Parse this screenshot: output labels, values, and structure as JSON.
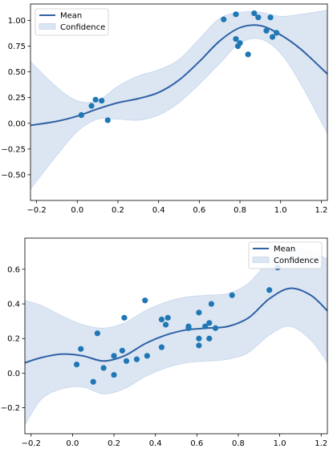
{
  "chart_data": [
    {
      "type": "line",
      "xlim": [
        -0.23,
        1.23
      ],
      "ylim": [
        -0.75,
        1.16
      ],
      "x_ticks": [
        -0.2,
        0.0,
        0.2,
        0.4,
        0.6,
        0.8,
        1.0,
        1.2
      ],
      "x_tick_labels": [
        "−0.2",
        "0.0",
        "0.2",
        "0.4",
        "0.6",
        "0.8",
        "1.0",
        "1.2"
      ],
      "y_ticks": [
        -0.5,
        -0.25,
        0.0,
        0.25,
        0.5,
        0.75,
        1.0
      ],
      "y_tick_labels": [
        "−0.50",
        "−0.25",
        "0.00",
        "0.25",
        "0.50",
        "0.75",
        "1.00"
      ],
      "legend": {
        "position": "top-left",
        "entries": [
          "Mean",
          "Confidence"
        ]
      },
      "series": [
        {
          "name": "Mean",
          "x": [
            -0.23,
            -0.1,
            0.0,
            0.1,
            0.2,
            0.3,
            0.4,
            0.5,
            0.6,
            0.7,
            0.8,
            0.9,
            1.0,
            1.1,
            1.23
          ],
          "values": [
            -0.02,
            0.02,
            0.07,
            0.14,
            0.2,
            0.24,
            0.3,
            0.42,
            0.6,
            0.8,
            0.93,
            0.95,
            0.86,
            0.72,
            0.48
          ]
        },
        {
          "name": "Confidence",
          "x": [
            -0.23,
            -0.1,
            0.0,
            0.1,
            0.2,
            0.3,
            0.4,
            0.5,
            0.6,
            0.7,
            0.8,
            0.9,
            1.0,
            1.1,
            1.23
          ],
          "upper": [
            0.6,
            0.35,
            0.22,
            0.22,
            0.36,
            0.46,
            0.52,
            0.62,
            0.82,
            1.02,
            1.08,
            1.08,
            1.04,
            1.06,
            1.1
          ],
          "lower": [
            -0.64,
            -0.31,
            -0.08,
            0.04,
            0.04,
            0.03,
            0.08,
            0.2,
            0.38,
            0.58,
            0.78,
            0.82,
            0.68,
            0.38,
            -0.1
          ]
        }
      ],
      "points": [
        {
          "x": 0.02,
          "y": 0.08
        },
        {
          "x": 0.07,
          "y": 0.17
        },
        {
          "x": 0.09,
          "y": 0.23
        },
        {
          "x": 0.12,
          "y": 0.22
        },
        {
          "x": 0.15,
          "y": 0.03
        },
        {
          "x": 0.72,
          "y": 1.01
        },
        {
          "x": 0.78,
          "y": 1.06
        },
        {
          "x": 0.78,
          "y": 0.82
        },
        {
          "x": 0.79,
          "y": 0.75
        },
        {
          "x": 0.8,
          "y": 0.78
        },
        {
          "x": 0.84,
          "y": 0.67
        },
        {
          "x": 0.87,
          "y": 1.07
        },
        {
          "x": 0.89,
          "y": 1.03
        },
        {
          "x": 0.93,
          "y": 0.9
        },
        {
          "x": 0.95,
          "y": 1.03
        },
        {
          "x": 0.96,
          "y": 0.84
        },
        {
          "x": 0.98,
          "y": 0.88
        }
      ],
      "colors": {
        "line": "#2f61a4",
        "band": "#dce6f3",
        "band_edge": "#c6d6ec",
        "points": "#1f77b4"
      }
    },
    {
      "type": "line",
      "xlim": [
        -0.23,
        1.23
      ],
      "ylim": [
        -0.35,
        0.78
      ],
      "x_ticks": [
        -0.2,
        0.0,
        0.2,
        0.4,
        0.6,
        0.8,
        1.0,
        1.2
      ],
      "x_tick_labels": [
        "−0.2",
        "0.0",
        "0.2",
        "0.4",
        "0.6",
        "0.8",
        "1.0",
        "1.2"
      ],
      "y_ticks": [
        -0.2,
        0.0,
        0.2,
        0.4,
        0.6
      ],
      "y_tick_labels": [
        "−0.2",
        "0.0",
        "0.2",
        "0.4",
        "0.6"
      ],
      "legend": {
        "position": "top-right",
        "entries": [
          "Mean",
          "Confidence"
        ]
      },
      "series": [
        {
          "name": "Mean",
          "x": [
            -0.23,
            -0.15,
            -0.05,
            0.05,
            0.15,
            0.25,
            0.35,
            0.45,
            0.55,
            0.65,
            0.75,
            0.85,
            0.95,
            1.05,
            1.15,
            1.23
          ],
          "values": [
            0.06,
            0.09,
            0.11,
            0.1,
            0.07,
            0.1,
            0.17,
            0.22,
            0.25,
            0.26,
            0.27,
            0.32,
            0.43,
            0.49,
            0.45,
            0.36
          ]
        },
        {
          "name": "Confidence",
          "x": [
            -0.23,
            -0.15,
            -0.05,
            0.05,
            0.15,
            0.25,
            0.35,
            0.45,
            0.55,
            0.65,
            0.75,
            0.85,
            0.95,
            1.05,
            1.15,
            1.23
          ],
          "upper": [
            0.42,
            0.39,
            0.33,
            0.28,
            0.26,
            0.29,
            0.36,
            0.41,
            0.44,
            0.45,
            0.46,
            0.52,
            0.65,
            0.72,
            0.7,
            0.66
          ],
          "lower": [
            -0.3,
            -0.15,
            -0.09,
            -0.08,
            -0.12,
            -0.09,
            -0.02,
            0.03,
            0.06,
            0.07,
            0.08,
            0.12,
            0.22,
            0.27,
            0.19,
            0.06
          ]
        }
      ],
      "points": [
        {
          "x": 0.02,
          "y": 0.05
        },
        {
          "x": 0.04,
          "y": 0.14
        },
        {
          "x": 0.1,
          "y": -0.05
        },
        {
          "x": 0.12,
          "y": 0.23
        },
        {
          "x": 0.15,
          "y": 0.03
        },
        {
          "x": 0.2,
          "y": 0.1
        },
        {
          "x": 0.2,
          "y": -0.01
        },
        {
          "x": 0.24,
          "y": 0.13
        },
        {
          "x": 0.25,
          "y": 0.32
        },
        {
          "x": 0.26,
          "y": 0.07
        },
        {
          "x": 0.31,
          "y": 0.08
        },
        {
          "x": 0.35,
          "y": 0.42
        },
        {
          "x": 0.36,
          "y": 0.1
        },
        {
          "x": 0.43,
          "y": 0.31
        },
        {
          "x": 0.43,
          "y": 0.15
        },
        {
          "x": 0.45,
          "y": 0.28
        },
        {
          "x": 0.46,
          "y": 0.32
        },
        {
          "x": 0.56,
          "y": 0.27
        },
        {
          "x": 0.56,
          "y": 0.26
        },
        {
          "x": 0.61,
          "y": 0.35
        },
        {
          "x": 0.61,
          "y": 0.2
        },
        {
          "x": 0.61,
          "y": 0.16
        },
        {
          "x": 0.64,
          "y": 0.27
        },
        {
          "x": 0.66,
          "y": 0.29
        },
        {
          "x": 0.66,
          "y": 0.2
        },
        {
          "x": 0.67,
          "y": 0.4
        },
        {
          "x": 0.69,
          "y": 0.26
        },
        {
          "x": 0.77,
          "y": 0.45
        },
        {
          "x": 0.95,
          "y": 0.48
        },
        {
          "x": 0.99,
          "y": 0.61
        }
      ],
      "colors": {
        "line": "#2f61a4",
        "band": "#dce6f3",
        "band_edge": "#c6d6ec",
        "points": "#1f77b4"
      }
    }
  ]
}
